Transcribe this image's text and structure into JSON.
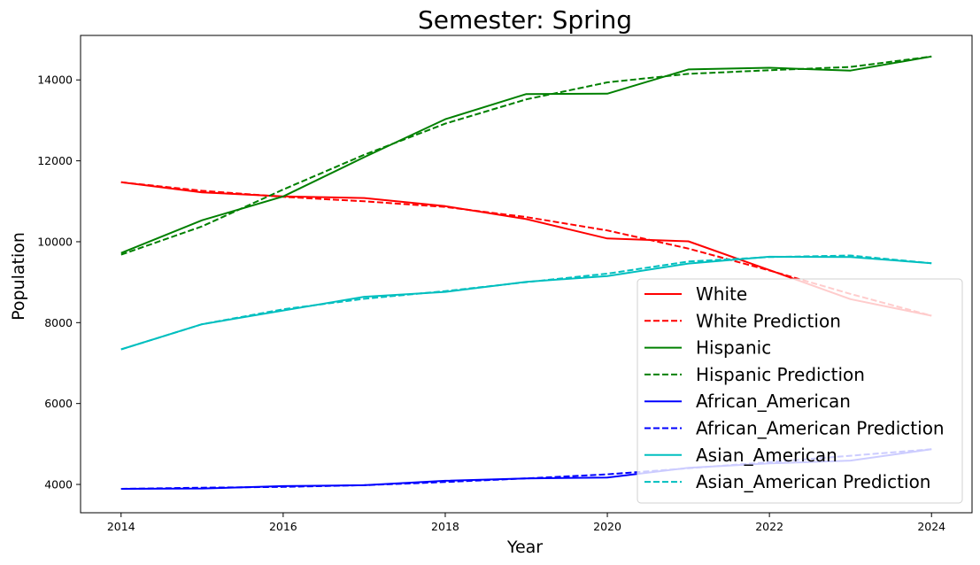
{
  "chart_data": {
    "type": "line",
    "title": "Semester: Spring",
    "xlabel": "Year",
    "ylabel": "Population",
    "xlim": [
      2013.5,
      2024.5
    ],
    "ylim": [
      3300,
      15100
    ],
    "xticks": [
      2014,
      2016,
      2018,
      2020,
      2022,
      2024
    ],
    "yticks": [
      4000,
      6000,
      8000,
      10000,
      12000,
      14000
    ],
    "grid": false,
    "legend_position": "lower-right",
    "x": [
      2014,
      2015,
      2016,
      2017,
      2018,
      2019,
      2020,
      2021,
      2022,
      2023,
      2024
    ],
    "series": [
      {
        "name": "White",
        "color": "#ff0000",
        "dash": "solid",
        "values": [
          11470,
          11220,
          11120,
          11080,
          10880,
          10560,
          10080,
          10010,
          9300,
          8580,
          8170
        ]
      },
      {
        "name": "White Prediction",
        "color": "#ff0000",
        "dash": "dashed",
        "values": [
          11470,
          11260,
          11110,
          11000,
          10860,
          10610,
          10280,
          9830,
          9290,
          8710,
          8170
        ]
      },
      {
        "name": "Hispanic",
        "color": "#008000",
        "dash": "solid",
        "values": [
          9720,
          10530,
          11120,
          12090,
          13030,
          13650,
          13660,
          14260,
          14300,
          14230,
          14580
        ]
      },
      {
        "name": "Hispanic Prediction",
        "color": "#008000",
        "dash": "dashed",
        "values": [
          9680,
          10380,
          11290,
          12150,
          12920,
          13520,
          13940,
          14150,
          14240,
          14320,
          14580
        ]
      },
      {
        "name": "African_American",
        "color": "#0000ff",
        "dash": "solid",
        "values": [
          3890,
          3900,
          3960,
          3980,
          4090,
          4150,
          4170,
          4410,
          4520,
          4590,
          4870
        ]
      },
      {
        "name": "African_American Prediction",
        "color": "#0000ff",
        "dash": "dashed",
        "values": [
          3890,
          3920,
          3940,
          3980,
          4060,
          4150,
          4250,
          4400,
          4550,
          4710,
          4870
        ]
      },
      {
        "name": "Asian_American",
        "color": "#00bfbf",
        "dash": "solid",
        "values": [
          7340,
          7960,
          8300,
          8640,
          8760,
          9010,
          9150,
          9460,
          9630,
          9620,
          9470
        ]
      },
      {
        "name": "Asian_American Prediction",
        "color": "#00bfbf",
        "dash": "dashed",
        "values": [
          7340,
          7960,
          8330,
          8590,
          8780,
          9000,
          9210,
          9510,
          9620,
          9660,
          9470
        ]
      }
    ]
  }
}
